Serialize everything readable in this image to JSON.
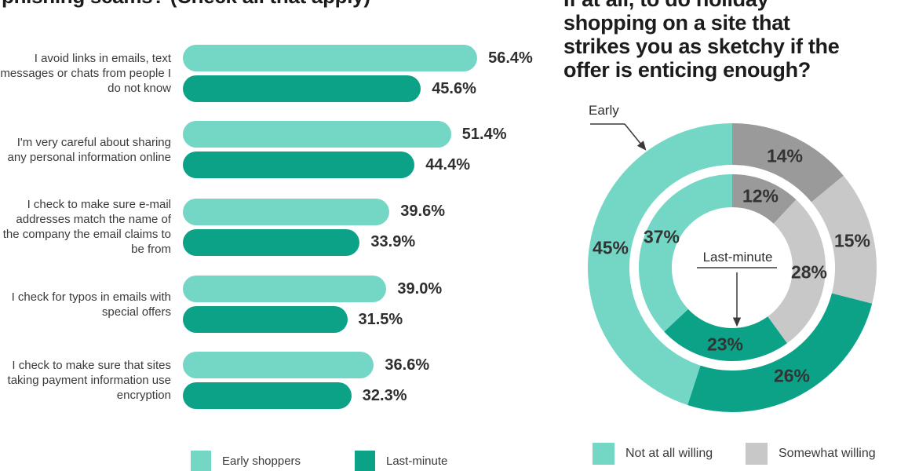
{
  "palette": {
    "light_teal": "#74D7C5",
    "dark_teal": "#0BA288",
    "dark_gray": "#9A9A9A",
    "light_gray": "#C8C8C8",
    "text_dark": "#2E2E2E"
  },
  "left_chart": {
    "title_clipped": "phishing scams? (Check all that apply)",
    "legend": [
      {
        "label": "Early shoppers",
        "color": "light_teal"
      },
      {
        "label": "Last-minute",
        "color": "dark_teal"
      }
    ]
  },
  "right_chart": {
    "title_lines": [
      "If at all, to do holiday",
      "shopping on a site that",
      "strikes you as sketchy if the",
      "offer is enticing enough?"
    ],
    "annotations": {
      "outer_label": "Early",
      "inner_label": "Last-minute"
    },
    "legend": [
      {
        "label": "Not at all willing",
        "color": "light_teal"
      },
      {
        "label": "Somewhat willing",
        "color": "light_gray"
      }
    ]
  },
  "chart_data": [
    {
      "type": "bar",
      "orientation": "horizontal",
      "title": "phishing scams? (Check all that apply)",
      "categories": [
        "I avoid links in emails, text messages or chats from people I do not know",
        "I'm very careful about sharing any personal information online",
        "I check to make sure e-mail addresses match the name of the company the email claims to be from",
        "I check for typos in emails with special offers",
        "I check to make sure that sites taking payment information use encryption"
      ],
      "series": [
        {
          "name": "Early shoppers",
          "color": "light_teal",
          "values": [
            56.4,
            51.4,
            39.6,
            39.0,
            36.6
          ]
        },
        {
          "name": "Last-minute",
          "color": "dark_teal",
          "values": [
            45.6,
            44.4,
            33.9,
            31.5,
            32.3
          ]
        }
      ],
      "value_suffix": "%",
      "xlim": [
        0,
        60
      ],
      "grid": false,
      "legend_position": "bottom"
    },
    {
      "type": "pie",
      "subtype": "double_donut",
      "title": "If at all, to do holiday shopping on a site that strikes you as sketchy if the offer is enticing enough?",
      "rings": [
        {
          "name": "Early",
          "position": "outer",
          "slices": [
            {
              "value": 14,
              "color": "dark_gray"
            },
            {
              "value": 15,
              "color": "light_gray",
              "legend": "Somewhat willing"
            },
            {
              "value": 26,
              "color": "dark_teal"
            },
            {
              "value": 45,
              "color": "light_teal",
              "legend": "Not at all willing"
            }
          ]
        },
        {
          "name": "Last-minute",
          "position": "inner",
          "slices": [
            {
              "value": 12,
              "color": "dark_gray"
            },
            {
              "value": 28,
              "color": "light_gray",
              "legend": "Somewhat willing"
            },
            {
              "value": 23,
              "color": "dark_teal"
            },
            {
              "value": 37,
              "color": "light_teal",
              "legend": "Not at all willing"
            }
          ]
        }
      ],
      "value_suffix": "%",
      "start_angle_deg": 0,
      "direction": "clockwise",
      "legend_position": "bottom"
    }
  ]
}
